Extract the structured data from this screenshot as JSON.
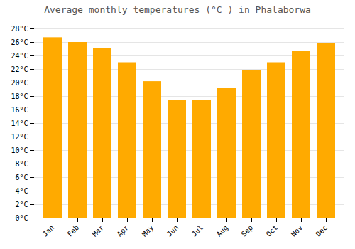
{
  "chart_data": {
    "type": "bar",
    "title": "Average monthly temperatures (°C ) in Phalaborwa",
    "categories": [
      "Jan",
      "Feb",
      "Mar",
      "Apr",
      "May",
      "Jun",
      "Jul",
      "Aug",
      "Sep",
      "Oct",
      "Nov",
      "Dec"
    ],
    "values": [
      26.7,
      26.0,
      25.1,
      23.0,
      20.2,
      17.4,
      17.4,
      19.2,
      21.8,
      23.0,
      24.7,
      25.8
    ],
    "color": "#FFAA00",
    "ylim": [
      0,
      28
    ],
    "yticks": [
      {
        "value": 0,
        "label": "0°C"
      },
      {
        "value": 2,
        "label": "2°C"
      },
      {
        "value": 4,
        "label": "4°C"
      },
      {
        "value": 6,
        "label": "6°C"
      },
      {
        "value": 8,
        "label": "8°C"
      },
      {
        "value": 10,
        "label": "10°C"
      },
      {
        "value": 12,
        "label": "12°C"
      },
      {
        "value": 14,
        "label": "14°C"
      },
      {
        "value": 16,
        "label": "16°C"
      },
      {
        "value": 18,
        "label": "18°C"
      },
      {
        "value": 20,
        "label": "20°C"
      },
      {
        "value": 22,
        "label": "22°C"
      },
      {
        "value": 24,
        "label": "24°C"
      },
      {
        "value": 26,
        "label": "26°C"
      },
      {
        "value": 28,
        "label": "28°C"
      }
    ],
    "grid": true
  }
}
